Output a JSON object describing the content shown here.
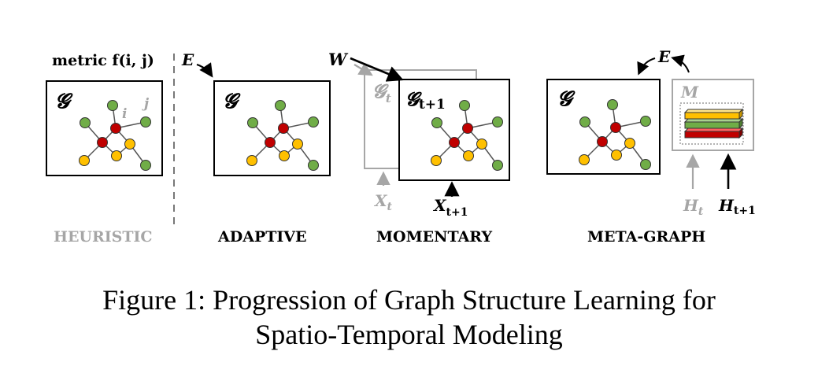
{
  "panels": {
    "heuristic": {
      "label": "HEURISTIC",
      "metric": "metric f(i, j)",
      "graph": "𝓖",
      "i": "i",
      "j": "j"
    },
    "adaptive": {
      "label": "ADAPTIVE",
      "edge_param": "E",
      "graph": "𝓖"
    },
    "momentary": {
      "label": "MOMENTARY",
      "weight": "W",
      "graph_prev": "𝓖",
      "graph_prev_sub": "t",
      "graph_next": "𝓖",
      "graph_next_sub": "t+1",
      "input_prev": "X",
      "input_prev_sub": "t",
      "input_next": "X",
      "input_next_sub": "t+1"
    },
    "meta_graph": {
      "label": "META-GRAPH",
      "edge_param": "E",
      "graph": "𝓖",
      "memory": "M",
      "hidden_prev": "H",
      "hidden_prev_sub": "t",
      "hidden_next": "H",
      "hidden_next_sub": "t+1"
    }
  },
  "colors": {
    "center_node": "#c00000",
    "yellow_node": "#ffc000",
    "green_node": "#70ad47",
    "gray": "#a6a6a6"
  },
  "caption": {
    "line1": "Figure 1: Progression of Graph Structure Learning for",
    "line2": "Spatio-Temporal Modeling"
  }
}
